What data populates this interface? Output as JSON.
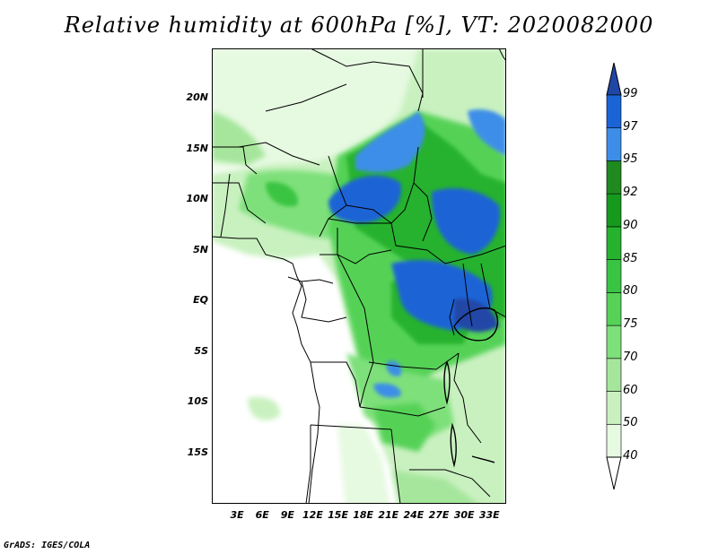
{
  "title": "Relative humidity at 600hPa [%], VT: 2020082000",
  "credit": "GrADS: IGES/COLA",
  "map": {
    "lon_range": [
      0,
      35
    ],
    "lat_range": [
      -20,
      25
    ],
    "lat_ticks": [
      {
        "value": 20,
        "label": "20N"
      },
      {
        "value": 15,
        "label": "15N"
      },
      {
        "value": 10,
        "label": "10N"
      },
      {
        "value": 5,
        "label": "5N"
      },
      {
        "value": 0,
        "label": "EQ"
      },
      {
        "value": -5,
        "label": "5S"
      },
      {
        "value": -10,
        "label": "10S"
      },
      {
        "value": -15,
        "label": "15S"
      }
    ],
    "lon_ticks": [
      {
        "value": 3,
        "label": "3E"
      },
      {
        "value": 6,
        "label": "6E"
      },
      {
        "value": 9,
        "label": "9E"
      },
      {
        "value": 12,
        "label": "12E"
      },
      {
        "value": 15,
        "label": "15E"
      },
      {
        "value": 18,
        "label": "18E"
      },
      {
        "value": 21,
        "label": "21E"
      },
      {
        "value": 24,
        "label": "24E"
      },
      {
        "value": 27,
        "label": "27E"
      },
      {
        "value": 30,
        "label": "30E"
      },
      {
        "value": 33,
        "label": "33E"
      }
    ]
  },
  "colorbar": {
    "levels": [
      40,
      50,
      60,
      70,
      75,
      80,
      85,
      90,
      92,
      95,
      97,
      99
    ],
    "colors": [
      "#ffffff",
      "#e6f9e1",
      "#c9f1c0",
      "#a6e69c",
      "#7ee07a",
      "#55d257",
      "#3ac443",
      "#26b22e",
      "#159a1e",
      "#1f8a1f",
      "#3d8ee8",
      "#1a64d6",
      "#2046a6"
    ]
  }
}
